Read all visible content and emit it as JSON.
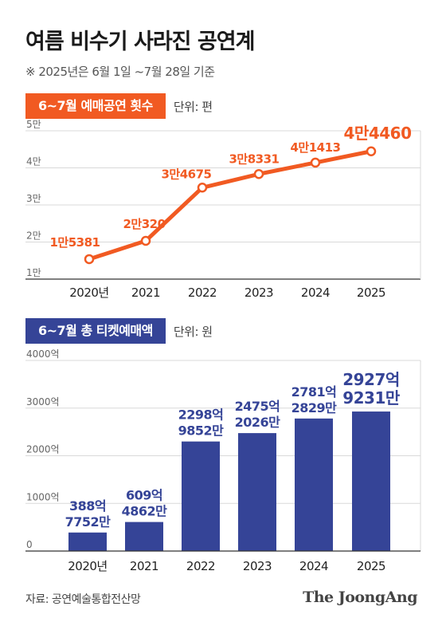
{
  "title": "여름 비수기 사라진 공연계",
  "note": "※ 2025년은 6월 1일 ~7월 28일 기준",
  "colors": {
    "orange": "#f15a22",
    "blue": "#354497",
    "grid": "#d9d9d9",
    "tick": "#666666"
  },
  "line_section": {
    "label": "6~7월 예매공연 횟수",
    "unit": "단위: 편"
  },
  "bar_section": {
    "label": "6~7월 총 티켓예매액",
    "unit": "단위: 원"
  },
  "source": "자료: 공연예술통합전산망",
  "logo": "The JoongAng",
  "chart_data": [
    {
      "type": "line",
      "x": [
        "2020년",
        "2021",
        "2022",
        "2023",
        "2024",
        "2025"
      ],
      "values": [
        15381,
        20320,
        34675,
        38331,
        41413,
        44460
      ],
      "data_labels": [
        "1만5381",
        "2만320",
        "3만4675",
        "3만8331",
        "4만1413",
        "4만4460"
      ],
      "yticks": [
        10000,
        20000,
        30000,
        40000,
        50000
      ],
      "ytick_labels": [
        "1만",
        "2만",
        "3만",
        "4만",
        "5만"
      ],
      "ylim": [
        10000,
        50000
      ],
      "grid": true,
      "color": "#f15a22"
    },
    {
      "type": "bar",
      "categories": [
        "2020년",
        "2021",
        "2022",
        "2023",
        "2024",
        "2025"
      ],
      "values": [
        388.7752,
        609.4862,
        2298.9852,
        2475.2026,
        2781.2829,
        2927.9231
      ],
      "data_labels": [
        [
          "388억",
          "7752만"
        ],
        [
          "609억",
          "4862만"
        ],
        [
          "2298억",
          "9852만"
        ],
        [
          "2475억",
          "2026만"
        ],
        [
          "2781억",
          "2829만"
        ],
        [
          "2927억",
          "9231만"
        ]
      ],
      "yticks": [
        0,
        1000,
        2000,
        3000,
        4000
      ],
      "ytick_labels": [
        "0",
        "1000억",
        "2000억",
        "3000억",
        "4000억"
      ],
      "ylim": [
        0,
        4000
      ],
      "grid": true,
      "color": "#354497"
    }
  ]
}
